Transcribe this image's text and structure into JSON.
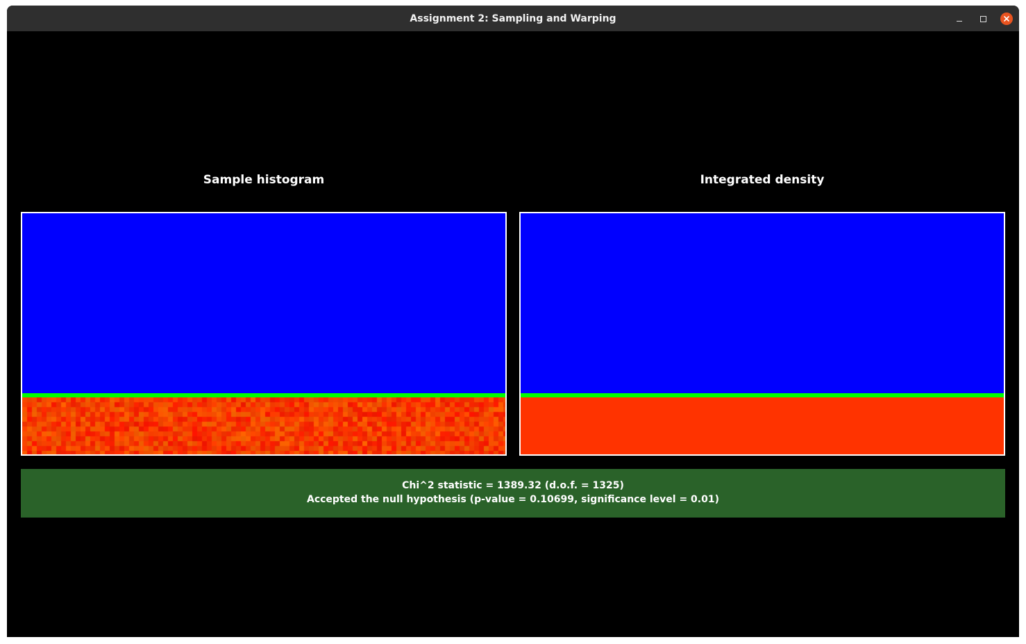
{
  "window": {
    "title": "Assignment 2: Sampling and Warping",
    "buttons": {
      "minimize": "minimize-icon",
      "maximize": "maximize-icon",
      "close": "close-icon"
    }
  },
  "panels": {
    "left": {
      "title": "Sample histogram"
    },
    "right": {
      "title": "Integrated density"
    }
  },
  "colors": {
    "background": "#000000",
    "low_value": "#0000ff",
    "boundary": "#00ff00",
    "high_value": "#ff3300",
    "result_accepted": "#2a6229",
    "close_button": "#e95420"
  },
  "result": {
    "line1": "Chi^2 statistic = 1389.32 (d.o.f. = 1325)",
    "line2": "Accepted the null hypothesis (p-value = 0.10699, significance level = 0.01)"
  }
}
